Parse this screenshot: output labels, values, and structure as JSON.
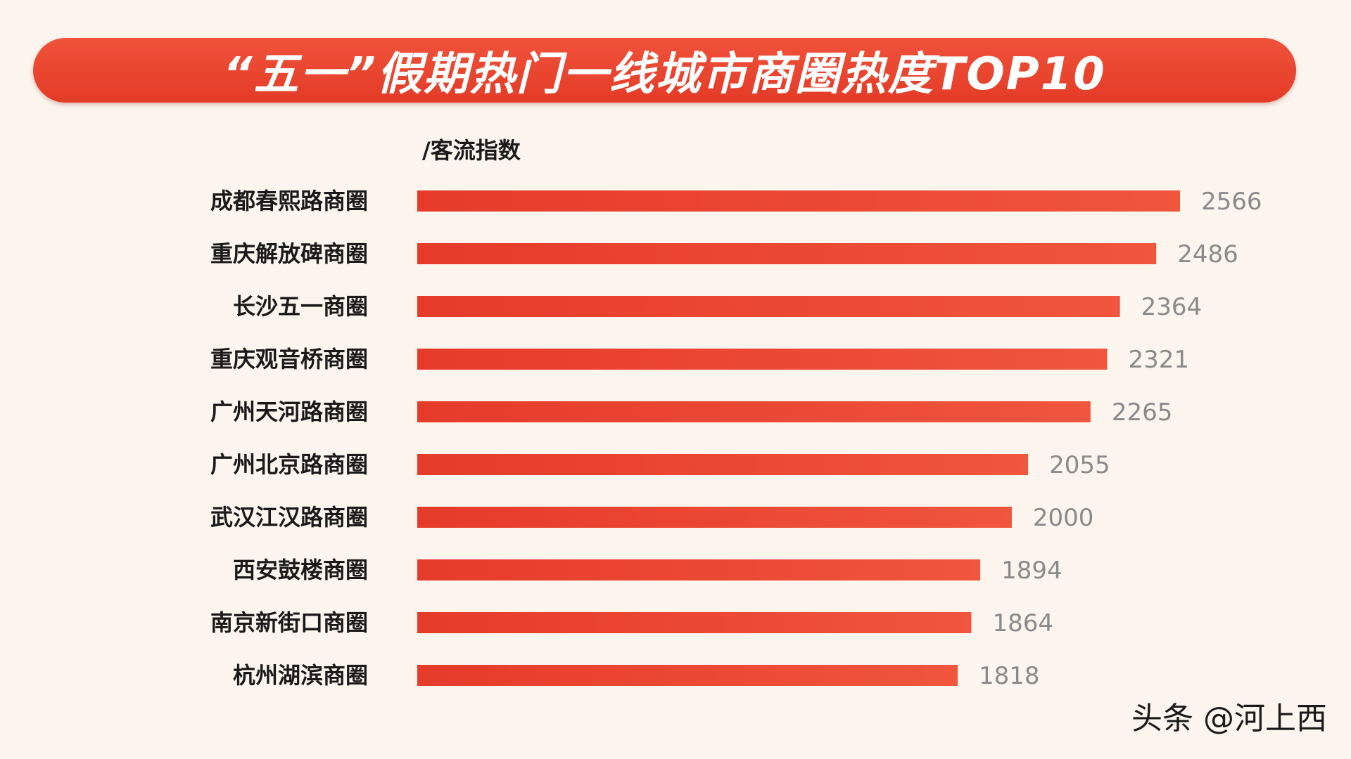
{
  "watermark": "头条 @河上西",
  "colors": {
    "background": "#fbf5ee",
    "bar_start": "#e63b2a",
    "bar_end": "#f0553d",
    "value_text": "#8a8a8a"
  },
  "chart_data": {
    "type": "bar",
    "orientation": "horizontal",
    "title": "“五一”假期热门一线城市商圈热度TOP10",
    "unit_label": "/客流指数",
    "categories": [
      "成都春熙路商圈",
      "重庆解放碑商圈",
      "长沙五一商圈",
      "重庆观音桥商圈",
      "广州天河路商圈",
      "广州北京路商圈",
      "武汉江汉路商圈",
      "西安鼓楼商圈",
      "南京新街口商圈",
      "杭州湖滨商圈"
    ],
    "values": [
      2566,
      2486,
      2364,
      2321,
      2265,
      2055,
      2000,
      1894,
      1864,
      1818
    ],
    "xlim": [
      0,
      2566
    ],
    "grid": false,
    "legend": "none"
  }
}
